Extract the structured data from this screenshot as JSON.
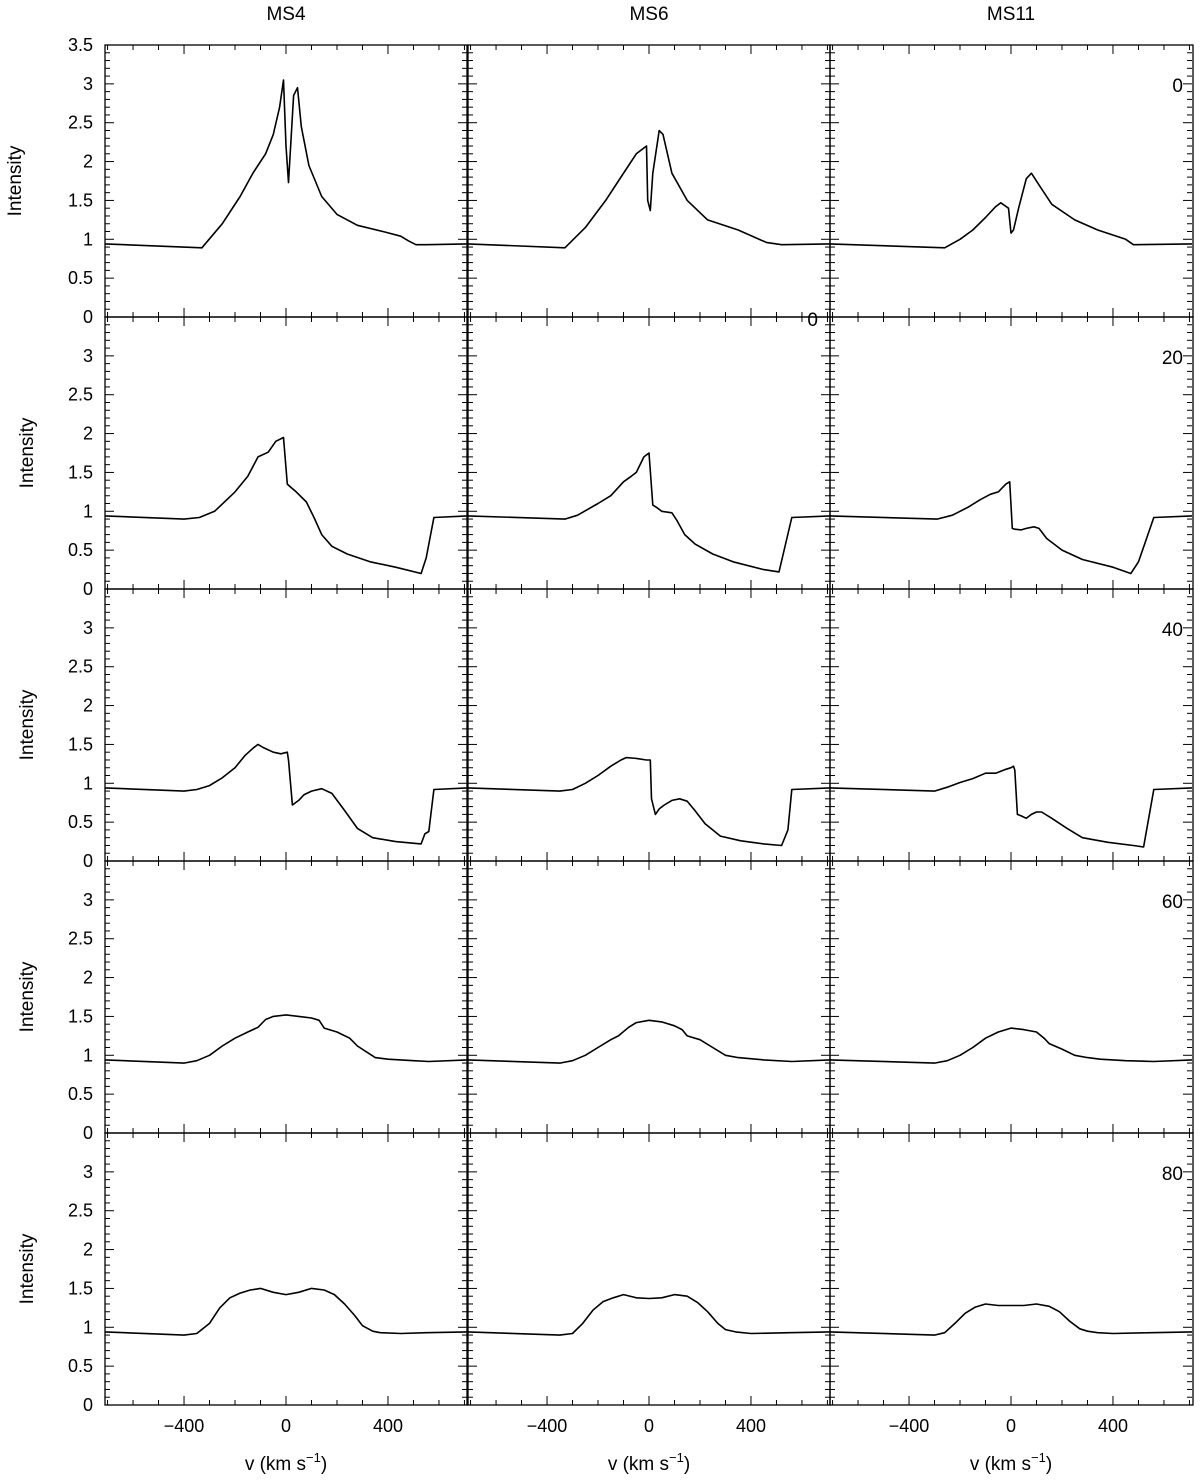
{
  "chart_data": {
    "type": "line",
    "layout": "grid of small multiples, 5 rows x 3 columns, shared axes",
    "column_titles": [
      "MS4",
      "MS6",
      "MS11"
    ],
    "row_labels": [
      "0",
      "20",
      "40",
      "60",
      "80"
    ],
    "extra_label": "0",
    "xlabel": "v (km s",
    "xlabel_superscript": "−1",
    "xlabel_close": ")",
    "ylabel": "Intensity",
    "xlim": [
      -710,
      710
    ],
    "ylim": [
      0,
      3.5
    ],
    "x_ticks": [
      -400,
      0,
      400
    ],
    "x_tick_labels": [
      "−400",
      "0",
      "400"
    ],
    "y_ticks_top": [
      0,
      0.5,
      1,
      1.5,
      2,
      2.5,
      3,
      3.5
    ],
    "y_tick_labels_top": [
      "0",
      "0.5",
      "1",
      "1.5",
      "2",
      "2.5",
      "3",
      "3.5"
    ],
    "y_ticks_other": [
      0,
      0.5,
      1,
      1.5,
      2,
      2.5,
      3
    ],
    "y_tick_labels_other": [
      "0",
      "0.5",
      "1",
      "1.5",
      "2",
      "2.5",
      "3"
    ],
    "line_color": "#000000",
    "panels": [
      [
        {
          "name": "MS4 0",
          "x": [
            -710,
            -330,
            -250,
            -180,
            -130,
            -80,
            -50,
            -25,
            -10,
            0,
            10,
            30,
            45,
            60,
            90,
            140,
            200,
            280,
            380,
            450,
            480,
            510,
            550,
            710
          ],
          "y": [
            0.94,
            0.89,
            1.2,
            1.55,
            1.85,
            2.1,
            2.35,
            2.7,
            3.05,
            2.2,
            1.73,
            2.85,
            2.95,
            2.45,
            1.95,
            1.55,
            1.32,
            1.18,
            1.1,
            1.04,
            0.98,
            0.93,
            0.93,
            0.94
          ]
        },
        {
          "name": "MS6 0",
          "x": [
            -710,
            -330,
            -250,
            -170,
            -120,
            -50,
            -10,
            -5,
            5,
            15,
            40,
            55,
            90,
            150,
            230,
            350,
            460,
            520,
            710
          ],
          "y": [
            0.94,
            0.89,
            1.15,
            1.5,
            1.75,
            2.1,
            2.2,
            1.5,
            1.37,
            1.85,
            2.4,
            2.35,
            1.85,
            1.5,
            1.25,
            1.12,
            0.96,
            0.93,
            0.94
          ]
        },
        {
          "name": "MS11 0",
          "x": [
            -710,
            -260,
            -200,
            -150,
            -100,
            -60,
            -40,
            -10,
            0,
            10,
            30,
            60,
            80,
            110,
            160,
            250,
            340,
            450,
            480,
            710
          ],
          "y": [
            0.94,
            0.89,
            1.0,
            1.12,
            1.28,
            1.42,
            1.47,
            1.4,
            1.08,
            1.12,
            1.4,
            1.78,
            1.85,
            1.7,
            1.45,
            1.25,
            1.12,
            1.0,
            0.93,
            0.94
          ]
        }
      ],
      [
        {
          "name": "MS4 20",
          "x": [
            -710,
            -400,
            -340,
            -280,
            -200,
            -150,
            -110,
            -70,
            -40,
            -10,
            5,
            15,
            40,
            80,
            110,
            140,
            180,
            240,
            330,
            430,
            530,
            550,
            580,
            710
          ],
          "y": [
            0.94,
            0.9,
            0.92,
            1.0,
            1.25,
            1.45,
            1.7,
            1.76,
            1.9,
            1.95,
            1.35,
            1.32,
            1.25,
            1.12,
            0.92,
            0.7,
            0.55,
            0.45,
            0.35,
            0.28,
            0.2,
            0.4,
            0.92,
            0.94
          ]
        },
        {
          "name": "MS6 20",
          "x": [
            -710,
            -330,
            -280,
            -200,
            -150,
            -100,
            -70,
            -50,
            -20,
            0,
            15,
            30,
            50,
            90,
            110,
            140,
            180,
            250,
            330,
            450,
            510,
            560,
            710
          ],
          "y": [
            0.94,
            0.9,
            0.95,
            1.1,
            1.2,
            1.38,
            1.45,
            1.5,
            1.7,
            1.75,
            1.08,
            1.05,
            1.0,
            0.98,
            0.88,
            0.7,
            0.58,
            0.45,
            0.35,
            0.25,
            0.22,
            0.92,
            0.94
          ]
        },
        {
          "name": "MS11 20",
          "x": [
            -710,
            -290,
            -230,
            -170,
            -120,
            -80,
            -50,
            -20,
            -5,
            5,
            15,
            40,
            60,
            90,
            110,
            140,
            200,
            280,
            400,
            470,
            500,
            560,
            710
          ],
          "y": [
            0.94,
            0.9,
            0.95,
            1.05,
            1.15,
            1.22,
            1.25,
            1.35,
            1.38,
            0.78,
            0.77,
            0.76,
            0.78,
            0.8,
            0.78,
            0.65,
            0.5,
            0.38,
            0.28,
            0.2,
            0.35,
            0.92,
            0.94
          ]
        }
      ],
      [
        {
          "name": "MS4 40",
          "x": [
            -710,
            -400,
            -350,
            -300,
            -250,
            -200,
            -160,
            -130,
            -110,
            -90,
            -50,
            -20,
            5,
            10,
            25,
            50,
            70,
            100,
            140,
            180,
            230,
            280,
            340,
            430,
            530,
            545,
            560,
            580,
            710
          ],
          "y": [
            0.94,
            0.9,
            0.92,
            0.97,
            1.07,
            1.2,
            1.36,
            1.45,
            1.5,
            1.46,
            1.4,
            1.38,
            1.4,
            1.3,
            0.72,
            0.78,
            0.85,
            0.9,
            0.93,
            0.87,
            0.65,
            0.42,
            0.3,
            0.25,
            0.22,
            0.35,
            0.38,
            0.92,
            0.94
          ]
        },
        {
          "name": "MS6 40",
          "x": [
            -710,
            -350,
            -300,
            -250,
            -200,
            -150,
            -110,
            -90,
            -50,
            -10,
            5,
            10,
            25,
            40,
            60,
            90,
            120,
            150,
            180,
            220,
            280,
            360,
            450,
            520,
            545,
            560,
            710
          ],
          "y": [
            0.94,
            0.9,
            0.92,
            1.0,
            1.1,
            1.22,
            1.3,
            1.33,
            1.32,
            1.3,
            1.3,
            0.8,
            0.6,
            0.67,
            0.72,
            0.78,
            0.8,
            0.77,
            0.65,
            0.48,
            0.32,
            0.26,
            0.22,
            0.2,
            0.4,
            0.92,
            0.94
          ]
        },
        {
          "name": "MS11 40",
          "x": [
            -710,
            -300,
            -250,
            -200,
            -150,
            -100,
            -60,
            -20,
            0,
            10,
            15,
            25,
            40,
            60,
            80,
            100,
            120,
            160,
            220,
            280,
            380,
            480,
            520,
            560,
            710
          ],
          "y": [
            0.94,
            0.9,
            0.95,
            1.01,
            1.06,
            1.13,
            1.13,
            1.18,
            1.2,
            1.22,
            1.17,
            0.6,
            0.58,
            0.55,
            0.6,
            0.63,
            0.63,
            0.55,
            0.42,
            0.3,
            0.24,
            0.2,
            0.18,
            0.92,
            0.94
          ]
        }
      ],
      [
        {
          "name": "MS4 60",
          "x": [
            -710,
            -400,
            -350,
            -300,
            -250,
            -200,
            -150,
            -110,
            -80,
            -50,
            0,
            50,
            100,
            130,
            150,
            200,
            250,
            280,
            350,
            400,
            500,
            560,
            710
          ],
          "y": [
            0.94,
            0.9,
            0.93,
            1.0,
            1.12,
            1.22,
            1.3,
            1.36,
            1.46,
            1.5,
            1.52,
            1.5,
            1.48,
            1.45,
            1.35,
            1.3,
            1.22,
            1.12,
            0.97,
            0.95,
            0.93,
            0.92,
            0.94
          ]
        },
        {
          "name": "MS6 60",
          "x": [
            -710,
            -350,
            -300,
            -250,
            -200,
            -150,
            -120,
            -80,
            -50,
            0,
            50,
            100,
            130,
            150,
            200,
            250,
            300,
            350,
            450,
            560,
            710
          ],
          "y": [
            0.94,
            0.9,
            0.93,
            1.0,
            1.1,
            1.2,
            1.25,
            1.36,
            1.42,
            1.45,
            1.43,
            1.38,
            1.33,
            1.25,
            1.2,
            1.1,
            1.0,
            0.97,
            0.94,
            0.92,
            0.94
          ]
        },
        {
          "name": "MS11 60",
          "x": [
            -710,
            -300,
            -250,
            -200,
            -150,
            -100,
            -50,
            0,
            50,
            100,
            130,
            150,
            200,
            250,
            300,
            350,
            450,
            560,
            710
          ],
          "y": [
            0.94,
            0.9,
            0.93,
            1.0,
            1.1,
            1.22,
            1.3,
            1.35,
            1.33,
            1.3,
            1.22,
            1.15,
            1.08,
            1.0,
            0.97,
            0.95,
            0.93,
            0.92,
            0.94
          ]
        }
      ],
      [
        {
          "name": "MS4 80",
          "x": [
            -710,
            -400,
            -350,
            -300,
            -260,
            -220,
            -180,
            -140,
            -100,
            -50,
            0,
            50,
            100,
            150,
            190,
            230,
            270,
            300,
            340,
            370,
            450,
            550,
            710
          ],
          "y": [
            0.94,
            0.9,
            0.92,
            1.05,
            1.25,
            1.38,
            1.44,
            1.48,
            1.5,
            1.45,
            1.42,
            1.45,
            1.5,
            1.48,
            1.42,
            1.3,
            1.15,
            1.02,
            0.95,
            0.93,
            0.92,
            0.93,
            0.94
          ]
        },
        {
          "name": "MS6 80",
          "x": [
            -710,
            -350,
            -300,
            -260,
            -220,
            -180,
            -140,
            -100,
            -50,
            0,
            50,
            100,
            150,
            190,
            230,
            270,
            300,
            340,
            400,
            550,
            710
          ],
          "y": [
            0.94,
            0.9,
            0.92,
            1.05,
            1.22,
            1.33,
            1.38,
            1.42,
            1.38,
            1.37,
            1.38,
            1.42,
            1.4,
            1.32,
            1.2,
            1.05,
            0.97,
            0.94,
            0.92,
            0.93,
            0.94
          ]
        },
        {
          "name": "MS11 80",
          "x": [
            -710,
            -300,
            -260,
            -220,
            -180,
            -140,
            -100,
            -50,
            0,
            50,
            100,
            150,
            190,
            230,
            270,
            300,
            340,
            400,
            550,
            710
          ],
          "y": [
            0.94,
            0.9,
            0.93,
            1.05,
            1.18,
            1.26,
            1.3,
            1.28,
            1.28,
            1.28,
            1.3,
            1.27,
            1.2,
            1.08,
            0.98,
            0.95,
            0.93,
            0.92,
            0.93,
            0.94
          ]
        }
      ]
    ]
  }
}
